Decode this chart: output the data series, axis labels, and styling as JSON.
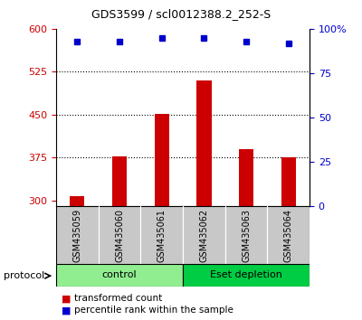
{
  "title": "GDS3599 / scl0012388.2_252-S",
  "samples": [
    "GSM435059",
    "GSM435060",
    "GSM435061",
    "GSM435062",
    "GSM435063",
    "GSM435064"
  ],
  "transformed_counts": [
    308,
    378,
    452,
    510,
    390,
    375
  ],
  "percentile_ranks": [
    93,
    93,
    95,
    95,
    93,
    92
  ],
  "ylim_left": [
    290,
    600
  ],
  "ylim_right": [
    0,
    100
  ],
  "yticks_left": [
    300,
    375,
    450,
    525,
    600
  ],
  "yticks_right": [
    0,
    25,
    50,
    75,
    100
  ],
  "bar_color": "#cc0000",
  "dot_color": "#0000cc",
  "bar_width": 0.35,
  "left_tick_color": "#cc0000",
  "right_tick_color": "#0000cc",
  "legend_bar_label": "transformed count",
  "legend_dot_label": "percentile rank within the sample",
  "protocol_label": "protocol",
  "control_label": "control",
  "eset_label": "Eset depletion",
  "control_color": "#90ee90",
  "eset_color": "#00cc44",
  "background_color": "#ffffff",
  "grid_color": "#000000",
  "sample_box_color": "#c8c8c8"
}
